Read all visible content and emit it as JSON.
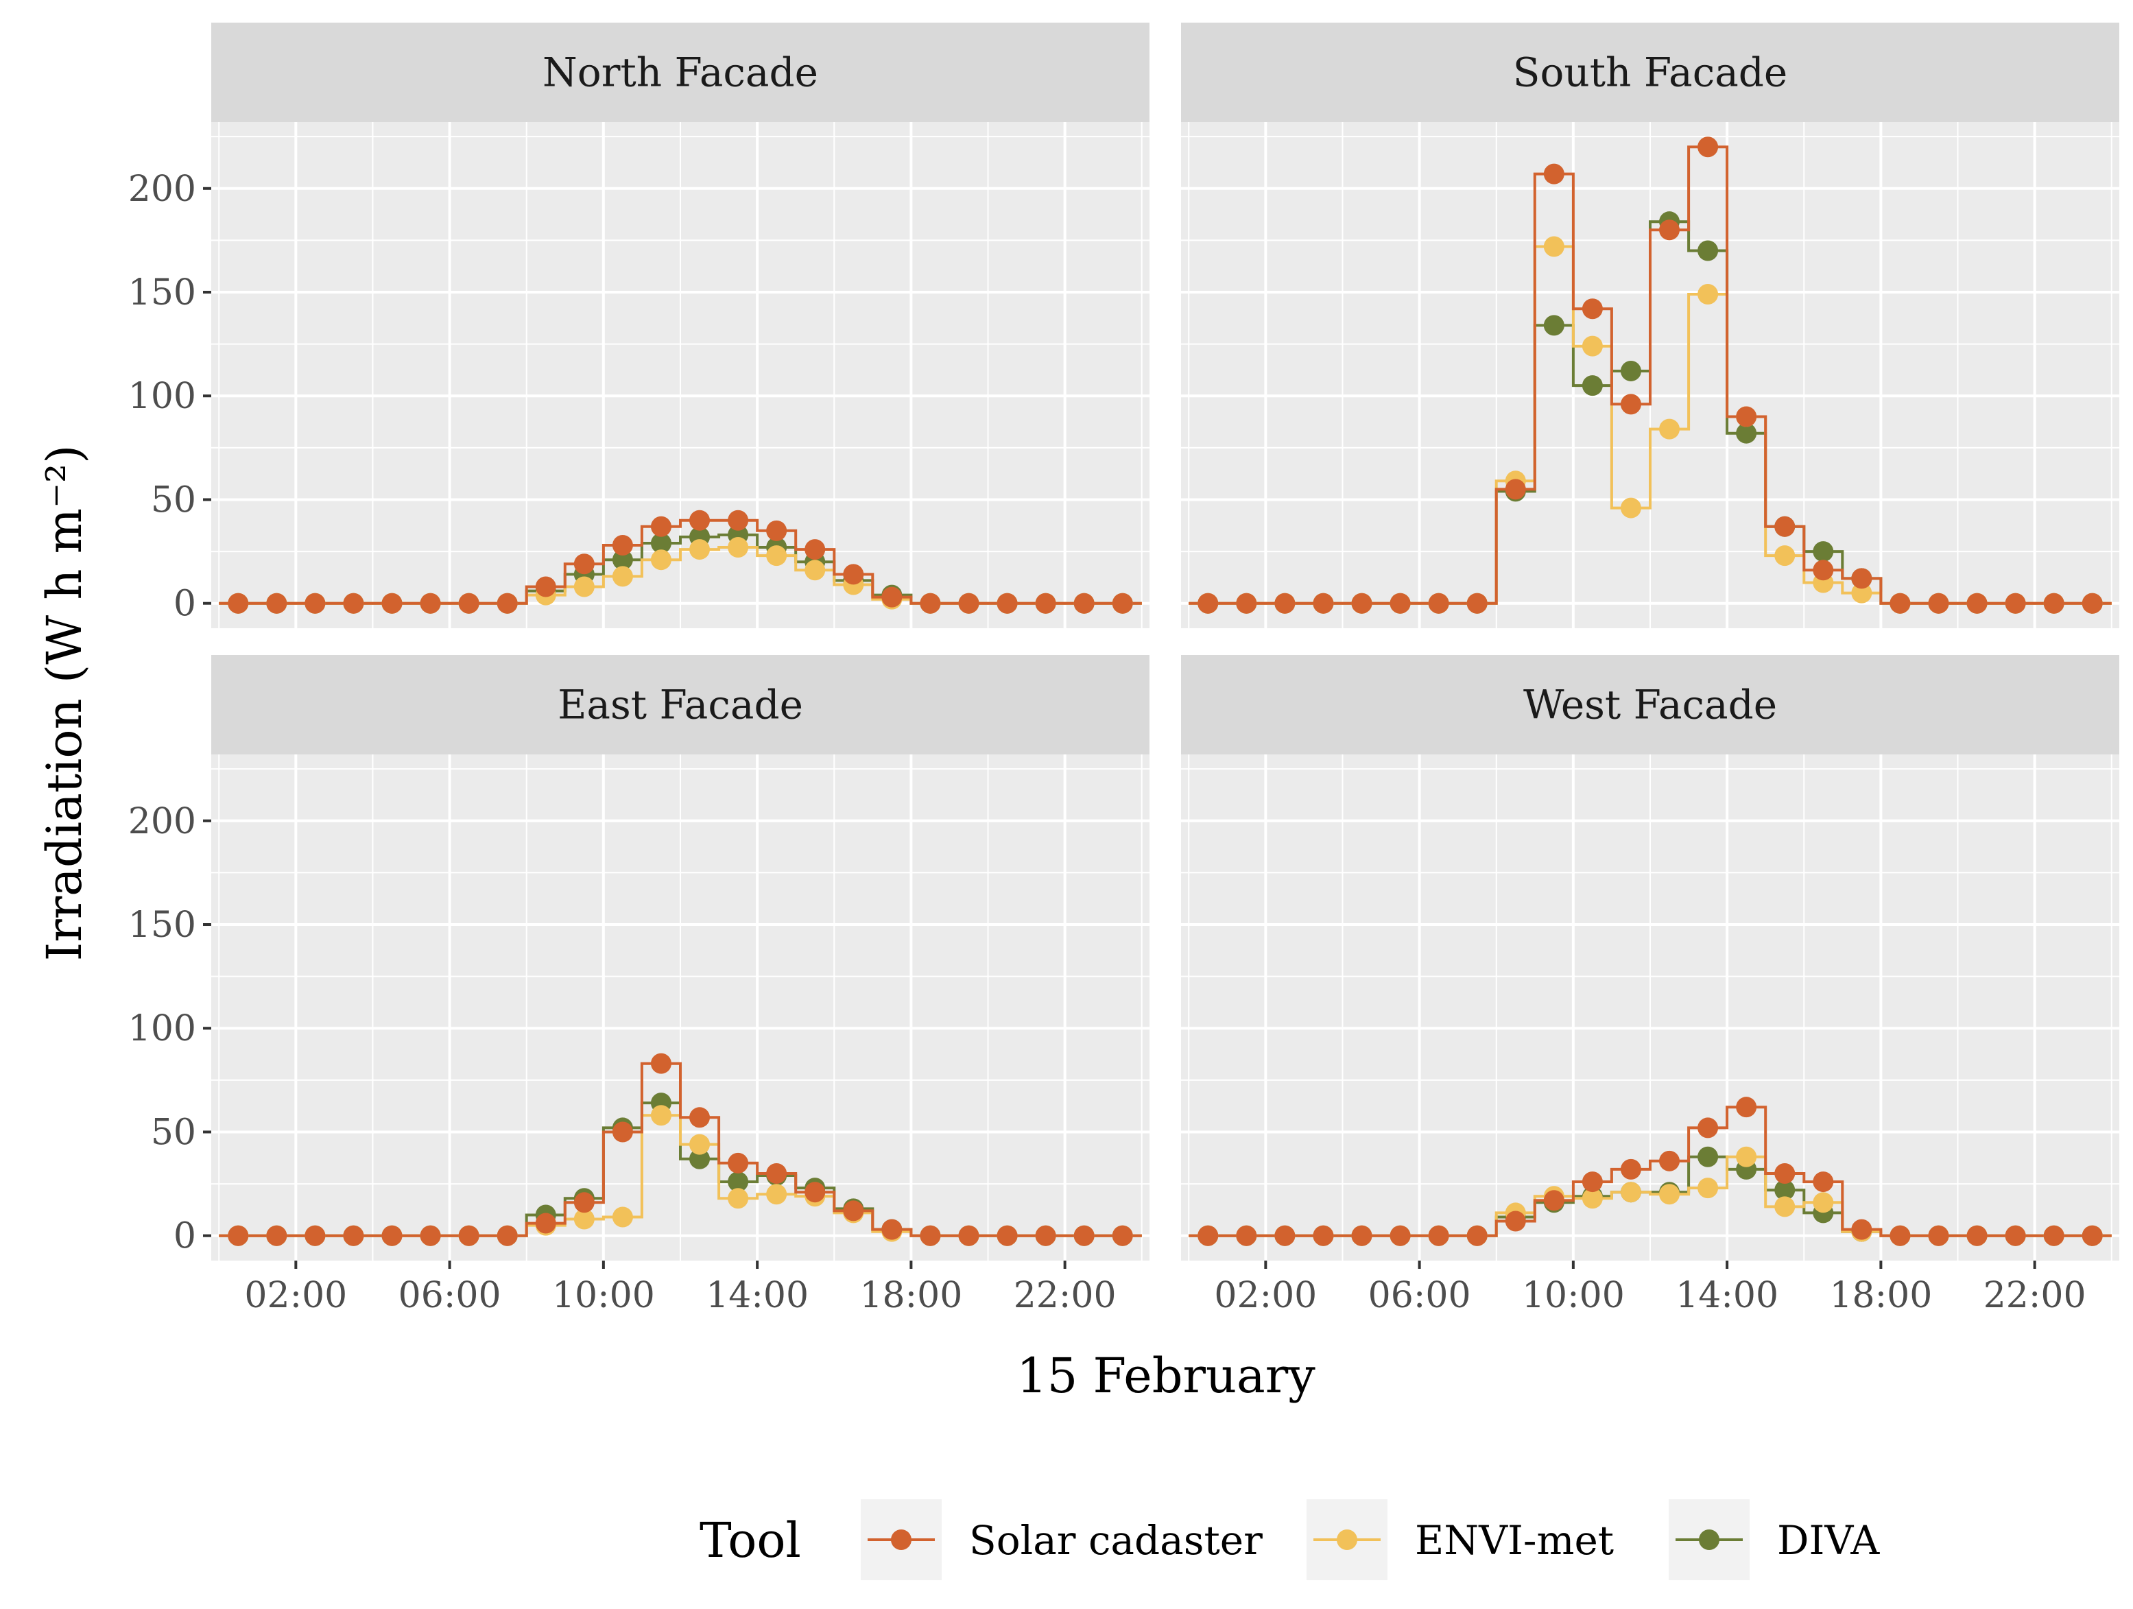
{
  "chart_data": {
    "type": "line",
    "style": "step-with-points",
    "xlabel": "15 February",
    "ylabel": "Irradiation (W h m⁻²)",
    "ylim": [
      -12,
      232
    ],
    "yticks": [
      0,
      50,
      100,
      150,
      200
    ],
    "xlim": [
      -0.2,
      24.2
    ],
    "xticks": [
      2,
      6,
      10,
      14,
      18,
      22
    ],
    "xtick_labels": [
      "02:00",
      "06:00",
      "10:00",
      "14:00",
      "18:00",
      "22:00"
    ],
    "x": [
      0.5,
      1.5,
      2.5,
      3.5,
      4.5,
      5.5,
      6.5,
      7.5,
      8.5,
      9.5,
      10.5,
      11.5,
      12.5,
      13.5,
      14.5,
      15.5,
      16.5,
      17.5,
      18.5,
      19.5,
      20.5,
      21.5,
      22.5,
      23.5
    ],
    "legend": {
      "title": "Tool",
      "position": "bottom",
      "entries": [
        "Solar cadaster",
        "ENVI-met",
        "DIVA"
      ],
      "colors": [
        "#d2622e",
        "#f2c159",
        "#6b7d35"
      ]
    },
    "panels": [
      {
        "title": "North Facade",
        "series": [
          {
            "name": "Solar cadaster",
            "values": [
              0,
              0,
              0,
              0,
              0,
              0,
              0,
              0,
              8,
              19,
              28,
              37,
              40,
              40,
              35,
              26,
              14,
              3,
              0,
              0,
              0,
              0,
              0,
              0
            ]
          },
          {
            "name": "ENVI-met",
            "values": [
              0,
              0,
              0,
              0,
              0,
              0,
              0,
              0,
              4,
              8,
              13,
              21,
              26,
              27,
              23,
              16,
              9,
              2,
              0,
              0,
              0,
              0,
              0,
              0
            ]
          },
          {
            "name": "DIVA",
            "values": [
              0,
              0,
              0,
              0,
              0,
              0,
              0,
              0,
              6,
              14,
              21,
              29,
              32,
              33,
              27,
              20,
              11,
              4,
              0,
              0,
              0,
              0,
              0,
              0
            ]
          }
        ]
      },
      {
        "title": "South Facade",
        "series": [
          {
            "name": "Solar cadaster",
            "values": [
              0,
              0,
              0,
              0,
              0,
              0,
              0,
              0,
              55,
              207,
              142,
              96,
              180,
              220,
              90,
              37,
              16,
              12,
              0,
              0,
              0,
              0,
              0,
              0
            ]
          },
          {
            "name": "ENVI-met",
            "values": [
              0,
              0,
              0,
              0,
              0,
              0,
              0,
              0,
              59,
              172,
              124,
              46,
              84,
              149,
              90,
              23,
              10,
              5,
              0,
              0,
              0,
              0,
              0,
              0
            ]
          },
          {
            "name": "DIVA",
            "values": [
              0,
              0,
              0,
              0,
              0,
              0,
              0,
              0,
              54,
              134,
              105,
              112,
              184,
              170,
              82,
              37,
              25,
              12,
              0,
              0,
              0,
              0,
              0,
              0
            ]
          }
        ]
      },
      {
        "title": "East Facade",
        "series": [
          {
            "name": "Solar cadaster",
            "values": [
              0,
              0,
              0,
              0,
              0,
              0,
              0,
              0,
              6,
              16,
              50,
              83,
              57,
              35,
              30,
              21,
              12,
              3,
              0,
              0,
              0,
              0,
              0,
              0
            ]
          },
          {
            "name": "ENVI-met",
            "values": [
              0,
              0,
              0,
              0,
              0,
              0,
              0,
              0,
              5,
              8,
              9,
              58,
              44,
              18,
              20,
              19,
              11,
              2,
              0,
              0,
              0,
              0,
              0,
              0
            ]
          },
          {
            "name": "DIVA",
            "values": [
              0,
              0,
              0,
              0,
              0,
              0,
              0,
              0,
              10,
              18,
              52,
              64,
              37,
              26,
              29,
              23,
              13,
              3,
              0,
              0,
              0,
              0,
              0,
              0
            ]
          }
        ]
      },
      {
        "title": "West Facade",
        "series": [
          {
            "name": "Solar cadaster",
            "values": [
              0,
              0,
              0,
              0,
              0,
              0,
              0,
              0,
              7,
              17,
              26,
              32,
              36,
              52,
              62,
              30,
              26,
              3,
              0,
              0,
              0,
              0,
              0,
              0
            ]
          },
          {
            "name": "ENVI-met",
            "values": [
              0,
              0,
              0,
              0,
              0,
              0,
              0,
              0,
              11,
              19,
              18,
              21,
              20,
              23,
              38,
              14,
              16,
              2,
              0,
              0,
              0,
              0,
              0,
              0
            ]
          },
          {
            "name": "DIVA",
            "values": [
              0,
              0,
              0,
              0,
              0,
              0,
              0,
              0,
              9,
              16,
              19,
              21,
              21,
              38,
              32,
              22,
              11,
              2,
              0,
              0,
              0,
              0,
              0,
              0
            ]
          }
        ]
      }
    ]
  }
}
